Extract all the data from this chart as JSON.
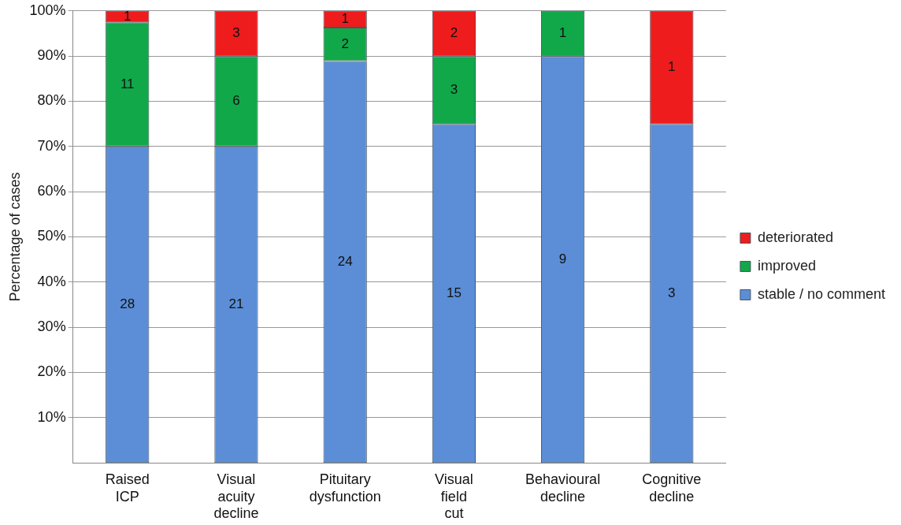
{
  "chart_data": {
    "type": "bar",
    "stacked": true,
    "ylabel": "Percentage of cases",
    "categories": [
      "Raised ICP",
      "Visual acuity decline",
      "Pituitary dysfunction",
      "Visual field cut",
      "Behavioural decline",
      "Cognitive decline"
    ],
    "series": [
      {
        "name": "stable / no comment",
        "color": "#5b8ed6",
        "values": [
          70,
          70,
          88.9,
          75,
          90,
          75
        ]
      },
      {
        "name": "improved",
        "color": "#11a84a",
        "values": [
          27.5,
          20,
          7.4,
          15,
          10,
          0
        ]
      },
      {
        "name": "deteriorated",
        "color": "#ee1c1c",
        "values": [
          2.5,
          10,
          3.7,
          10,
          0,
          25
        ]
      }
    ],
    "annotations": [
      "28",
      "11",
      "1",
      "21",
      "6",
      "3",
      "24",
      "2",
      "1",
      "15",
      "3",
      "2",
      "9",
      "1",
      "3",
      "1"
    ],
    "ylim": [
      0,
      100
    ],
    "yticks": [
      {
        "value": 10,
        "label": "10%"
      },
      {
        "value": 20,
        "label": "20%"
      },
      {
        "value": 30,
        "label": "30%"
      },
      {
        "value": 40,
        "label": "40%"
      },
      {
        "value": 50,
        "label": "50%"
      },
      {
        "value": 60,
        "label": "60%"
      },
      {
        "value": 70,
        "label": "70%"
      },
      {
        "value": 80,
        "label": "80%"
      },
      {
        "value": 90,
        "label": "90%"
      },
      {
        "value": 100,
        "label": "100%"
      }
    ],
    "grid": "y",
    "legend": "right"
  }
}
